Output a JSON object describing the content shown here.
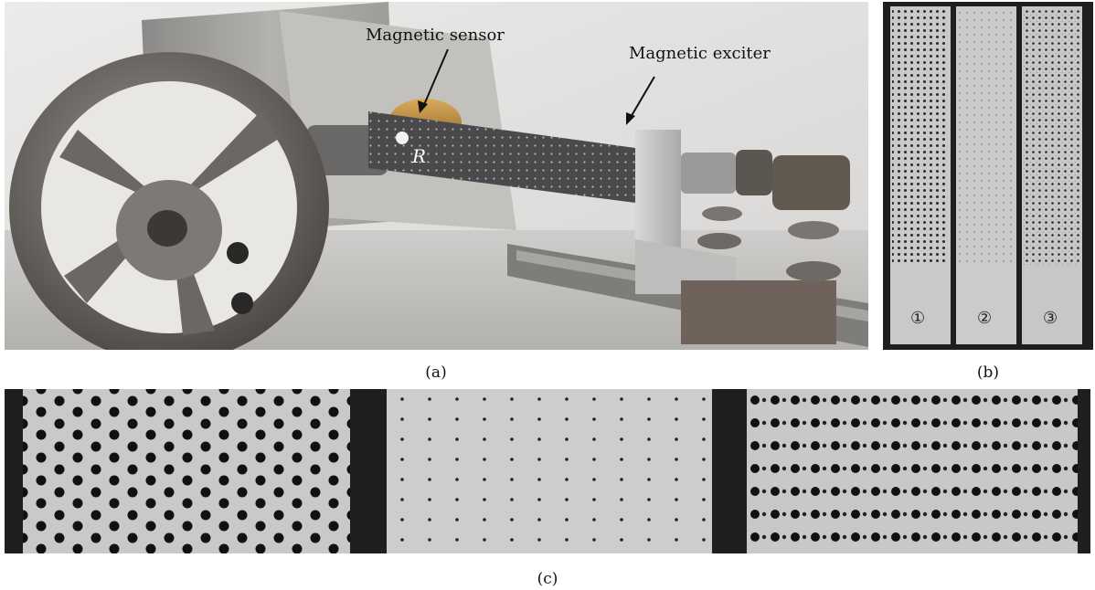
{
  "figure": {
    "panel_a": {
      "caption": "(a)",
      "labels": {
        "sensor": "Magnetic sensor",
        "exciter": "Magnetic exciter",
        "point": "R"
      }
    },
    "panel_b": {
      "caption": "(b)",
      "plate_numbers": [
        "①",
        "②",
        "③"
      ]
    },
    "panel_c": {
      "caption": "(c)"
    }
  },
  "colors": {
    "background": "#ffffff",
    "wall": "#e4e2e0",
    "metal": "#b9b9b9",
    "plate_dark": "#4a4a4c",
    "wheel": "#6e6a66",
    "brass": "#b9893f",
    "aluminium": "#c9c9c7",
    "hole": "#111111",
    "backdrop_dark": "#1f1f21"
  }
}
